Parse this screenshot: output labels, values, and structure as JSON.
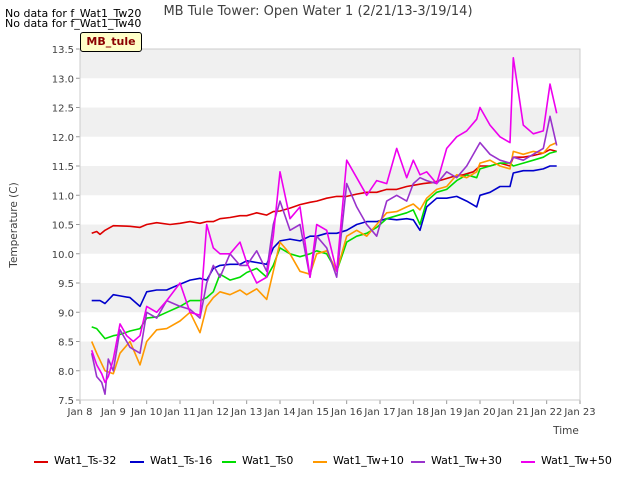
{
  "notes": [
    "No data for f_Wat1_Tw20",
    "No data for f_Wat1_Tw40"
  ],
  "badge": "MB_tule",
  "chart_data": {
    "type": "line",
    "title": "MB Tule Tower: Open Water 1 (2/21/13-3/19/14)",
    "xlabel": "Time",
    "ylabel": "Temperature (C)",
    "x_ticks": [
      "Jan 8",
      "Jan 9",
      "Jan 10",
      "Jan 11",
      "Jan 12",
      "Jan 13",
      "Jan 14",
      "Jan 15",
      "Jan 16",
      "Jan 17",
      "Jan 18",
      "Jan 19",
      "Jan 20",
      "Jan 21",
      "Jan 22",
      "Jan 23"
    ],
    "y_ticks": [
      "7.5",
      "8.0",
      "8.5",
      "9.0",
      "9.5",
      "10.0",
      "10.5",
      "11.0",
      "11.5",
      "12.0",
      "12.5",
      "13.0",
      "13.5"
    ],
    "xlim": [
      8,
      23
    ],
    "ylim": [
      7.5,
      13.5
    ],
    "grid": "alternating horizontal bands",
    "legend_position": "bottom",
    "series": [
      {
        "name": "Wat1_Ts-32",
        "color": "#dd0000",
        "x": [
          8.35,
          8.5,
          8.6,
          8.75,
          9,
          9.5,
          9.8,
          10,
          10.3,
          10.7,
          11,
          11.3,
          11.6,
          11.8,
          12,
          12.2,
          12.5,
          12.8,
          13,
          13.3,
          13.6,
          13.8,
          14,
          14.3,
          14.6,
          14.9,
          15.1,
          15.4,
          15.7,
          16,
          16.3,
          16.6,
          16.9,
          17.2,
          17.5,
          17.8,
          18,
          18.3,
          18.6,
          18.9,
          19.2,
          19.5,
          19.8,
          20,
          20.3,
          20.6,
          20.9,
          21,
          21.3,
          21.6,
          21.9,
          22.1,
          22.3
        ],
        "y": [
          10.35,
          10.38,
          10.33,
          10.4,
          10.48,
          10.47,
          10.45,
          10.5,
          10.53,
          10.5,
          10.52,
          10.55,
          10.52,
          10.55,
          10.55,
          10.6,
          10.62,
          10.65,
          10.65,
          10.7,
          10.66,
          10.72,
          10.73,
          10.78,
          10.84,
          10.88,
          10.9,
          10.95,
          10.98,
          10.98,
          11.02,
          11.05,
          11.05,
          11.1,
          11.1,
          11.15,
          11.17,
          11.2,
          11.22,
          11.27,
          11.32,
          11.35,
          11.4,
          11.5,
          11.5,
          11.55,
          11.5,
          11.65,
          11.65,
          11.68,
          11.72,
          11.78,
          11.75
        ]
      },
      {
        "name": "Wat1_Ts-16",
        "color": "#0000cc",
        "x": [
          8.35,
          8.6,
          8.75,
          9,
          9.2,
          9.5,
          9.8,
          10,
          10.3,
          10.6,
          11,
          11.3,
          11.6,
          11.8,
          12,
          12.2,
          12.5,
          12.8,
          13,
          13.3,
          13.6,
          13.8,
          14,
          14.3,
          14.6,
          14.9,
          15.1,
          15.4,
          15.7,
          16,
          16.3,
          16.6,
          16.9,
          17.2,
          17.5,
          17.8,
          18,
          18.2,
          18.4,
          18.7,
          19,
          19.3,
          19.6,
          19.9,
          20,
          20.3,
          20.6,
          20.9,
          21,
          21.3,
          21.6,
          21.9,
          22.1,
          22.3
        ],
        "y": [
          9.2,
          9.2,
          9.15,
          9.3,
          9.28,
          9.25,
          9.1,
          9.35,
          9.38,
          9.38,
          9.48,
          9.55,
          9.58,
          9.55,
          9.75,
          9.8,
          9.82,
          9.82,
          9.88,
          9.85,
          9.82,
          10.1,
          10.22,
          10.25,
          10.22,
          10.3,
          10.3,
          10.35,
          10.35,
          10.4,
          10.5,
          10.55,
          10.55,
          10.6,
          10.58,
          10.6,
          10.58,
          10.4,
          10.8,
          10.95,
          10.95,
          10.98,
          10.9,
          10.8,
          11.0,
          11.05,
          11.15,
          11.15,
          11.38,
          11.42,
          11.42,
          11.45,
          11.5,
          11.5
        ]
      },
      {
        "name": "Wat1_Ts0",
        "color": "#00dd00",
        "x": [
          8.35,
          8.5,
          8.75,
          9,
          9.2,
          9.5,
          9.8,
          10,
          10.3,
          10.6,
          11,
          11.3,
          11.6,
          11.8,
          12,
          12.2,
          12.5,
          12.8,
          13,
          13.3,
          13.6,
          13.8,
          14,
          14.3,
          14.6,
          14.9,
          15.1,
          15.4,
          15.7,
          16,
          16.3,
          16.6,
          16.9,
          17.2,
          17.5,
          17.8,
          18,
          18.2,
          18.4,
          18.7,
          19,
          19.3,
          19.6,
          19.9,
          20,
          20.3,
          20.6,
          20.9,
          21,
          21.3,
          21.6,
          21.9,
          22.1,
          22.3
        ],
        "y": [
          8.75,
          8.72,
          8.55,
          8.6,
          8.62,
          8.68,
          8.72,
          8.9,
          8.92,
          9.0,
          9.1,
          9.2,
          9.2,
          9.25,
          9.35,
          9.65,
          9.55,
          9.6,
          9.68,
          9.75,
          9.6,
          9.8,
          10.1,
          10.0,
          9.95,
          10.0,
          10.05,
          10.0,
          9.7,
          10.2,
          10.3,
          10.35,
          10.45,
          10.6,
          10.65,
          10.7,
          10.75,
          10.5,
          10.9,
          11.05,
          11.1,
          11.25,
          11.35,
          11.3,
          11.45,
          11.5,
          11.55,
          11.55,
          11.5,
          11.55,
          11.6,
          11.65,
          11.72,
          11.75
        ]
      },
      {
        "name": "Wat1_Tw+10",
        "color": "#ff9900",
        "x": [
          8.35,
          8.5,
          8.75,
          9,
          9.2,
          9.5,
          9.8,
          10,
          10.3,
          10.6,
          11,
          11.3,
          11.6,
          11.8,
          12,
          12.2,
          12.5,
          12.8,
          13,
          13.3,
          13.6,
          13.8,
          14,
          14.3,
          14.6,
          14.9,
          15.1,
          15.4,
          15.7,
          16,
          16.3,
          16.6,
          16.9,
          17.2,
          17.5,
          17.8,
          18,
          18.2,
          18.4,
          18.7,
          19,
          19.3,
          19.6,
          19.9,
          20,
          20.3,
          20.6,
          20.9,
          21,
          21.3,
          21.6,
          21.9,
          22.1,
          22.3
        ],
        "y": [
          8.5,
          8.3,
          8.0,
          7.95,
          8.3,
          8.5,
          8.1,
          8.5,
          8.7,
          8.72,
          8.85,
          9.0,
          8.65,
          9.1,
          9.25,
          9.35,
          9.3,
          9.38,
          9.3,
          9.4,
          9.22,
          9.7,
          10.2,
          10.0,
          9.7,
          9.65,
          10.0,
          10.05,
          9.7,
          10.3,
          10.4,
          10.3,
          10.5,
          10.7,
          10.72,
          10.8,
          10.85,
          10.75,
          10.95,
          11.1,
          11.15,
          11.35,
          11.3,
          11.4,
          11.55,
          11.6,
          11.5,
          11.45,
          11.75,
          11.7,
          11.75,
          11.72,
          11.85,
          11.9
        ]
      },
      {
        "name": "Wat1_Tw+30",
        "color": "#9933cc",
        "x": [
          8.35,
          8.5,
          8.65,
          8.75,
          8.85,
          9,
          9.2,
          9.5,
          9.8,
          10,
          10.3,
          10.6,
          11,
          11.3,
          11.6,
          11.8,
          12,
          12.2,
          12.5,
          12.8,
          13,
          13.3,
          13.6,
          13.8,
          14,
          14.3,
          14.6,
          14.9,
          15.1,
          15.4,
          15.7,
          16,
          16.3,
          16.6,
          16.9,
          17.2,
          17.5,
          17.8,
          18,
          18.2,
          18.4,
          18.7,
          19,
          19.3,
          19.6,
          19.9,
          20,
          20.3,
          20.6,
          20.9,
          21,
          21.3,
          21.6,
          21.9,
          22.1,
          22.3
        ],
        "y": [
          8.3,
          7.9,
          7.8,
          7.6,
          8.2,
          8.0,
          8.7,
          8.4,
          8.3,
          9.0,
          8.9,
          9.2,
          9.1,
          9.05,
          8.9,
          9.5,
          9.8,
          9.6,
          10.0,
          9.8,
          9.8,
          10.05,
          9.7,
          10.5,
          10.9,
          10.4,
          10.5,
          9.6,
          10.3,
          10.1,
          9.6,
          11.2,
          10.8,
          10.5,
          10.3,
          10.9,
          11.0,
          10.9,
          11.2,
          11.3,
          11.25,
          11.2,
          11.4,
          11.3,
          11.5,
          11.8,
          11.9,
          11.7,
          11.6,
          11.55,
          11.65,
          11.6,
          11.7,
          11.8,
          12.35,
          11.85
        ]
      },
      {
        "name": "Wat1_Tw+50",
        "color": "#ee00ee",
        "x": [
          8.35,
          8.5,
          8.65,
          8.75,
          8.85,
          9,
          9.2,
          9.4,
          9.6,
          9.8,
          10,
          10.3,
          10.6,
          11,
          11.3,
          11.6,
          11.8,
          12,
          12.2,
          12.5,
          12.8,
          13,
          13.3,
          13.6,
          13.8,
          14,
          14.3,
          14.6,
          14.9,
          15.1,
          15.4,
          15.7,
          16,
          16.3,
          16.6,
          16.9,
          17.2,
          17.5,
          17.8,
          18,
          18.2,
          18.4,
          18.7,
          19,
          19.3,
          19.6,
          19.9,
          20,
          20.3,
          20.6,
          20.9,
          21,
          21.3,
          21.6,
          21.9,
          22.1,
          22.3
        ],
        "y": [
          8.35,
          8.1,
          7.95,
          7.8,
          7.9,
          8.2,
          8.8,
          8.6,
          8.5,
          8.6,
          9.1,
          9.0,
          9.2,
          9.5,
          9.0,
          8.95,
          10.5,
          10.1,
          10.0,
          10.0,
          10.2,
          9.85,
          9.5,
          9.6,
          10.3,
          11.4,
          10.6,
          10.8,
          9.6,
          10.5,
          10.4,
          9.7,
          11.6,
          11.3,
          11.0,
          11.25,
          11.2,
          11.8,
          11.3,
          11.6,
          11.35,
          11.4,
          11.2,
          11.8,
          12.0,
          12.1,
          12.3,
          12.5,
          12.2,
          12.0,
          11.9,
          13.35,
          12.2,
          12.05,
          12.1,
          12.9,
          12.4
        ]
      }
    ]
  }
}
